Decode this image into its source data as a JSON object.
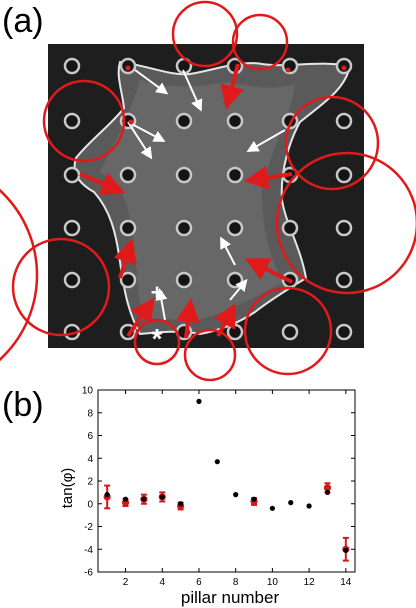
{
  "figure": {
    "panel_a_label": "(a)",
    "panel_b_label": "(b)",
    "micrograph_markers": {
      "plus": "+",
      "star": "*"
    }
  },
  "colors": {
    "highlight": "#e01a1a",
    "black_series": "#000000",
    "red_series": "#d21919",
    "micrograph_bg": "#1e1e1e",
    "pillar": "#c8c8c8"
  },
  "chart_data": {
    "type": "scatter",
    "title": "",
    "xlabel": "pillar number",
    "ylabel": "tan(φ)",
    "xlim": [
      0.5,
      14.5
    ],
    "ylim": [
      -6,
      10
    ],
    "xticks": [
      2,
      4,
      6,
      8,
      10,
      12,
      14
    ],
    "yticks": [
      -6,
      -4,
      -2,
      0,
      2,
      4,
      6,
      8,
      10
    ],
    "grid": false,
    "series": [
      {
        "color": "#000000",
        "points": [
          {
            "x": 1,
            "y": 0.8
          },
          {
            "x": 2,
            "y": 0.4
          },
          {
            "x": 3,
            "y": 0.4
          },
          {
            "x": 4,
            "y": 0.6
          },
          {
            "x": 5,
            "y": 0.0
          },
          {
            "x": 6,
            "y": 9.0
          },
          {
            "x": 7,
            "y": 3.7
          },
          {
            "x": 8,
            "y": 0.8
          },
          {
            "x": 9,
            "y": 0.4
          },
          {
            "x": 10,
            "y": -0.4
          },
          {
            "x": 11,
            "y": 0.1
          },
          {
            "x": 12,
            "y": -0.2
          },
          {
            "x": 13,
            "y": 1.0
          },
          {
            "x": 14,
            "y": -4.1
          }
        ]
      },
      {
        "color": "#d21919",
        "points": [
          {
            "x": 1,
            "y": 0.6,
            "err": 1.0
          },
          {
            "x": 2,
            "y": 0.1,
            "err": 0.3
          },
          {
            "x": 3,
            "y": 0.4,
            "err": 0.4
          },
          {
            "x": 4,
            "y": 0.6,
            "err": 0.4
          },
          {
            "x": 5,
            "y": -0.2,
            "err": 0.3
          },
          {
            "x": 9,
            "y": 0.2,
            "err": 0.3
          },
          {
            "x": 13,
            "y": 1.4,
            "err": 0.4
          },
          {
            "x": 14,
            "y": -4.0,
            "err": 1.0
          }
        ]
      }
    ]
  }
}
